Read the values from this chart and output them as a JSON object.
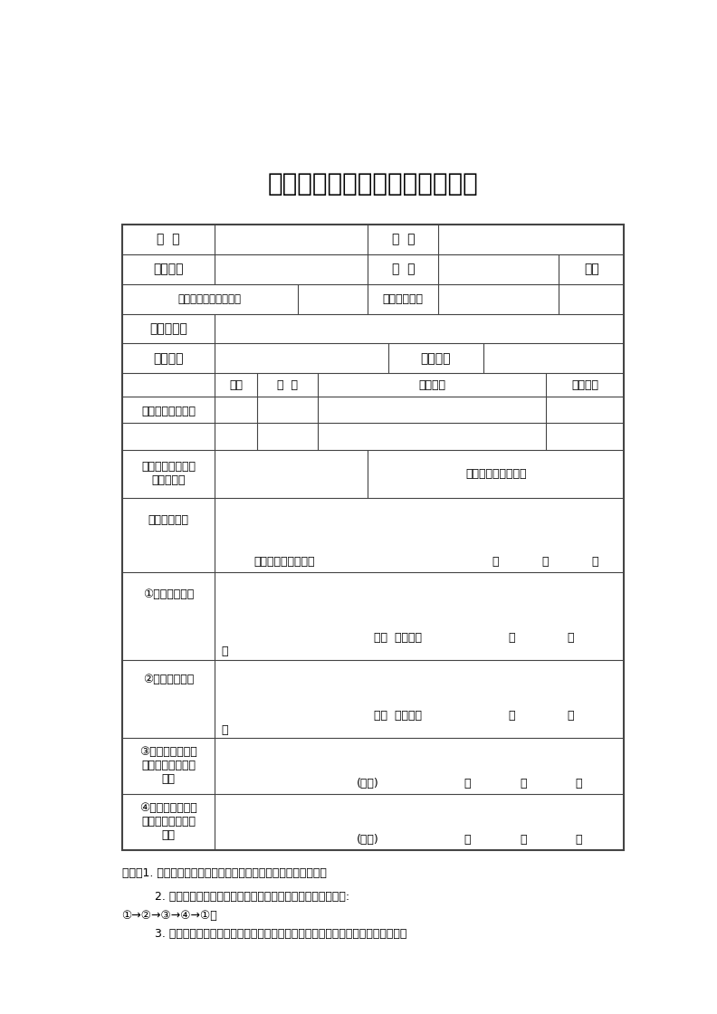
{
  "title": "通江县中小学生转学申请登记表",
  "title_fontsize": 20,
  "body_fontsize": 10,
  "small_fontsize": 9,
  "background": "#ffffff",
  "text_color": "#000000",
  "line_color": "#444444",
  "notes": [
    "说明：1. 本申请表可作为转学联系信息和转学电子证明材料使用。",
    "         2. 本人或监护人须如实填写基本信息及申请理由。签章流程为:",
    "①→②→③→④→①。",
    "         3. 由转入学校教务处在规定的时间内集中到县教育局签章。转入学校在全国学籍系"
  ]
}
